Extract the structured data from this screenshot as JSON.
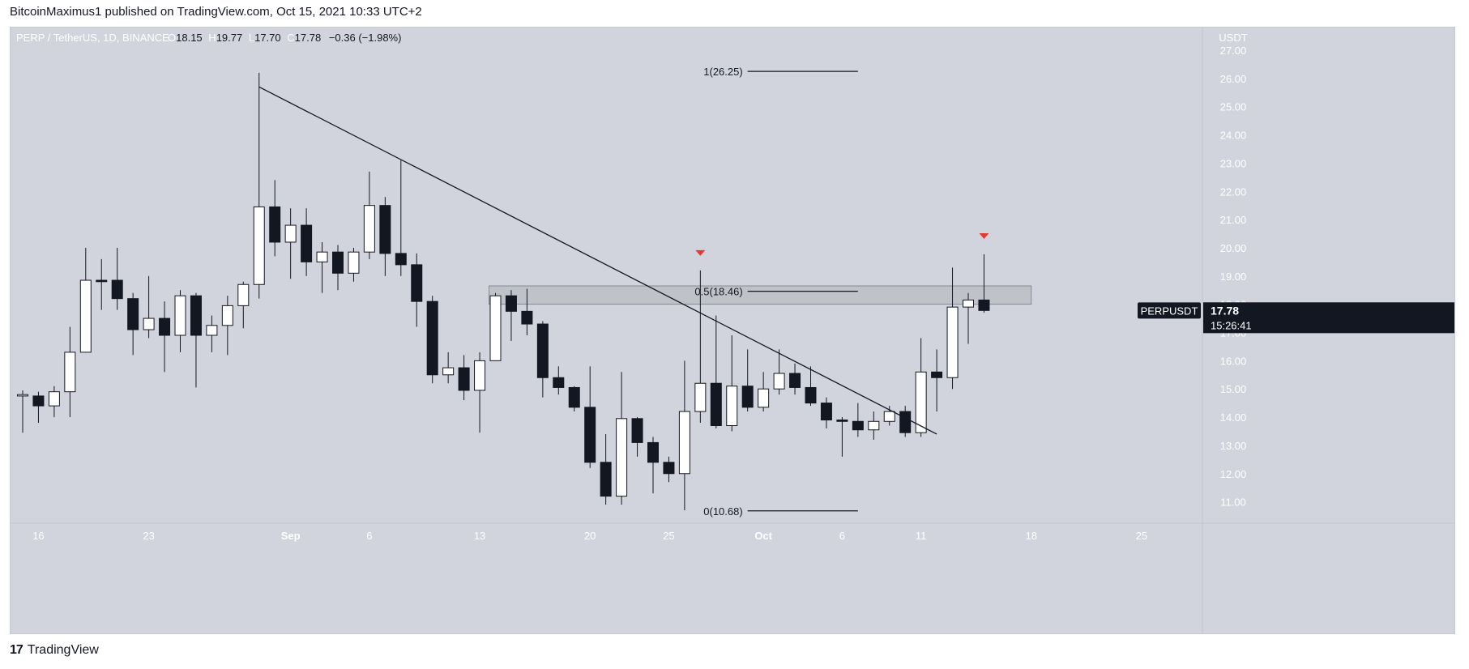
{
  "header": {
    "text": "BitcoinMaximus1 published on TradingView.com, Oct 15, 2021 10:33 UTC+2"
  },
  "footer": {
    "brand": "TradingView",
    "logo_icon": "tradingview-logo-icon"
  },
  "colors": {
    "background": "#d1d4dc",
    "up_candle": "#ffffff",
    "down_candle": "#131722",
    "zone_fill": "#b9bcc4",
    "marker": "#e53935",
    "price_label_bg": "#131722"
  },
  "chart_data": {
    "type": "candlestick",
    "title": "PERP / TetherUS, 1D, BINANCE",
    "ohlc_readout": {
      "o_label": "O",
      "o": "18.15",
      "h_label": "H",
      "h": "19.77",
      "l_label": "L",
      "l": "17.70",
      "c_label": "C",
      "c": "17.78",
      "change": "−0.36 (−1.98%)"
    },
    "currency": "USDT",
    "ylim": [
      10.3,
      27.7
    ],
    "y_ticks": [
      "27.00",
      "26.00",
      "25.00",
      "24.00",
      "23.00",
      "22.00",
      "21.00",
      "20.00",
      "19.00",
      "18.00",
      "17.00",
      "16.00",
      "15.00",
      "14.00",
      "13.00",
      "12.00",
      "11.00"
    ],
    "x_ticks": [
      {
        "label": "16",
        "date": "2021-08-16"
      },
      {
        "label": "23",
        "date": "2021-08-23"
      },
      {
        "label": "Sep",
        "date": "2021-09-01"
      },
      {
        "label": "6",
        "date": "2021-09-06"
      },
      {
        "label": "13",
        "date": "2021-09-13"
      },
      {
        "label": "20",
        "date": "2021-09-20"
      },
      {
        "label": "25",
        "date": "2021-09-25"
      },
      {
        "label": "Oct",
        "date": "2021-10-01"
      },
      {
        "label": "6",
        "date": "2021-10-06"
      },
      {
        "label": "11",
        "date": "2021-10-11"
      },
      {
        "label": "18",
        "date": "2021-10-18"
      },
      {
        "label": "25",
        "date": "2021-10-25"
      }
    ],
    "candles": [
      {
        "d": "2021-08-15",
        "o": 14.75,
        "h": 14.95,
        "l": 13.45,
        "c": 14.8
      },
      {
        "d": "2021-08-16",
        "o": 14.75,
        "h": 14.9,
        "l": 13.8,
        "c": 14.4
      },
      {
        "d": "2021-08-17",
        "o": 14.4,
        "h": 15.1,
        "l": 14.0,
        "c": 14.9
      },
      {
        "d": "2021-08-18",
        "o": 14.9,
        "h": 17.2,
        "l": 14.0,
        "c": 16.3
      },
      {
        "d": "2021-08-19",
        "o": 16.3,
        "h": 20.0,
        "l": 16.3,
        "c": 18.85
      },
      {
        "d": "2021-08-20",
        "o": 18.85,
        "h": 19.6,
        "l": 17.8,
        "c": 18.8
      },
      {
        "d": "2021-08-21",
        "o": 18.85,
        "h": 20.0,
        "l": 17.8,
        "c": 18.2
      },
      {
        "d": "2021-08-22",
        "o": 18.2,
        "h": 18.4,
        "l": 16.2,
        "c": 17.1
      },
      {
        "d": "2021-08-23",
        "o": 17.1,
        "h": 19.0,
        "l": 16.8,
        "c": 17.5
      },
      {
        "d": "2021-08-24",
        "o": 17.5,
        "h": 18.1,
        "l": 15.6,
        "c": 16.9
      },
      {
        "d": "2021-08-25",
        "o": 16.9,
        "h": 18.5,
        "l": 16.3,
        "c": 18.3
      },
      {
        "d": "2021-08-26",
        "o": 18.3,
        "h": 18.4,
        "l": 15.05,
        "c": 16.9
      },
      {
        "d": "2021-08-27",
        "o": 16.9,
        "h": 17.6,
        "l": 16.3,
        "c": 17.25
      },
      {
        "d": "2021-08-28",
        "o": 17.25,
        "h": 18.3,
        "l": 16.2,
        "c": 17.95
      },
      {
        "d": "2021-08-29",
        "o": 17.95,
        "h": 18.8,
        "l": 17.15,
        "c": 18.7
      },
      {
        "d": "2021-08-30",
        "o": 18.7,
        "h": 26.2,
        "l": 18.2,
        "c": 21.45
      },
      {
        "d": "2021-08-31",
        "o": 21.45,
        "h": 22.4,
        "l": 19.7,
        "c": 20.2
      },
      {
        "d": "2021-09-01",
        "o": 20.2,
        "h": 21.4,
        "l": 18.9,
        "c": 20.8
      },
      {
        "d": "2021-09-02",
        "o": 20.8,
        "h": 21.4,
        "l": 19.0,
        "c": 19.5
      },
      {
        "d": "2021-09-03",
        "o": 19.5,
        "h": 20.2,
        "l": 18.4,
        "c": 19.85
      },
      {
        "d": "2021-09-04",
        "o": 19.85,
        "h": 20.1,
        "l": 18.5,
        "c": 19.1
      },
      {
        "d": "2021-09-05",
        "o": 19.1,
        "h": 20.0,
        "l": 18.8,
        "c": 19.85
      },
      {
        "d": "2021-09-06",
        "o": 19.85,
        "h": 22.7,
        "l": 19.6,
        "c": 21.5
      },
      {
        "d": "2021-09-07",
        "o": 21.5,
        "h": 21.8,
        "l": 19.0,
        "c": 19.8
      },
      {
        "d": "2021-09-08",
        "o": 19.8,
        "h": 23.1,
        "l": 19.0,
        "c": 19.4
      },
      {
        "d": "2021-09-09",
        "o": 19.4,
        "h": 19.8,
        "l": 17.2,
        "c": 18.1
      },
      {
        "d": "2021-09-10",
        "o": 18.1,
        "h": 18.3,
        "l": 15.2,
        "c": 15.5
      },
      {
        "d": "2021-09-11",
        "o": 15.5,
        "h": 16.3,
        "l": 15.2,
        "c": 15.75
      },
      {
        "d": "2021-09-12",
        "o": 15.75,
        "h": 16.2,
        "l": 14.6,
        "c": 14.95
      },
      {
        "d": "2021-09-13",
        "o": 14.95,
        "h": 16.3,
        "l": 13.45,
        "c": 16.0
      },
      {
        "d": "2021-09-14",
        "o": 16.0,
        "h": 18.4,
        "l": 16.0,
        "c": 18.3
      },
      {
        "d": "2021-09-15",
        "o": 18.3,
        "h": 18.5,
        "l": 16.7,
        "c": 17.75
      },
      {
        "d": "2021-09-16",
        "o": 17.75,
        "h": 18.55,
        "l": 16.9,
        "c": 17.3
      },
      {
        "d": "2021-09-17",
        "o": 17.3,
        "h": 17.4,
        "l": 14.7,
        "c": 15.4
      },
      {
        "d": "2021-09-18",
        "o": 15.4,
        "h": 15.8,
        "l": 14.8,
        "c": 15.05
      },
      {
        "d": "2021-09-19",
        "o": 15.05,
        "h": 15.1,
        "l": 14.2,
        "c": 14.35
      },
      {
        "d": "2021-09-20",
        "o": 14.35,
        "h": 15.8,
        "l": 12.2,
        "c": 12.4
      },
      {
        "d": "2021-09-21",
        "o": 12.4,
        "h": 13.4,
        "l": 10.9,
        "c": 11.2
      },
      {
        "d": "2021-09-22",
        "o": 11.2,
        "h": 15.6,
        "l": 10.9,
        "c": 13.95
      },
      {
        "d": "2021-09-23",
        "o": 13.95,
        "h": 14.0,
        "l": 12.6,
        "c": 13.1
      },
      {
        "d": "2021-09-24",
        "o": 13.1,
        "h": 13.3,
        "l": 11.3,
        "c": 12.4
      },
      {
        "d": "2021-09-25",
        "o": 12.4,
        "h": 12.6,
        "l": 11.7,
        "c": 12.0
      },
      {
        "d": "2021-09-26",
        "o": 12.0,
        "h": 16.0,
        "l": 10.7,
        "c": 14.2
      },
      {
        "d": "2021-09-27",
        "o": 14.2,
        "h": 19.2,
        "l": 13.8,
        "c": 15.2
      },
      {
        "d": "2021-09-28",
        "o": 15.2,
        "h": 17.6,
        "l": 13.6,
        "c": 13.7
      },
      {
        "d": "2021-09-29",
        "o": 13.7,
        "h": 16.9,
        "l": 13.5,
        "c": 15.1
      },
      {
        "d": "2021-09-30",
        "o": 15.1,
        "h": 16.4,
        "l": 14.2,
        "c": 14.35
      },
      {
        "d": "2021-10-01",
        "o": 14.35,
        "h": 15.6,
        "l": 14.2,
        "c": 15.0
      },
      {
        "d": "2021-10-02",
        "o": 15.0,
        "h": 16.4,
        "l": 14.8,
        "c": 15.55
      },
      {
        "d": "2021-10-03",
        "o": 15.55,
        "h": 15.9,
        "l": 14.8,
        "c": 15.05
      },
      {
        "d": "2021-10-04",
        "o": 15.05,
        "h": 15.8,
        "l": 14.4,
        "c": 14.5
      },
      {
        "d": "2021-10-05",
        "o": 14.5,
        "h": 14.7,
        "l": 13.6,
        "c": 13.9
      },
      {
        "d": "2021-10-06",
        "o": 13.9,
        "h": 14.0,
        "l": 12.6,
        "c": 13.85
      },
      {
        "d": "2021-10-07",
        "o": 13.85,
        "h": 14.5,
        "l": 13.3,
        "c": 13.55
      },
      {
        "d": "2021-10-08",
        "o": 13.55,
        "h": 14.2,
        "l": 13.2,
        "c": 13.85
      },
      {
        "d": "2021-10-09",
        "o": 13.85,
        "h": 14.4,
        "l": 13.7,
        "c": 14.2
      },
      {
        "d": "2021-10-10",
        "o": 14.2,
        "h": 14.4,
        "l": 13.3,
        "c": 13.45
      },
      {
        "d": "2021-10-11",
        "o": 13.45,
        "h": 16.8,
        "l": 13.3,
        "c": 15.6
      },
      {
        "d": "2021-10-12",
        "o": 15.6,
        "h": 16.4,
        "l": 14.2,
        "c": 15.4
      },
      {
        "d": "2021-10-13",
        "o": 15.4,
        "h": 19.3,
        "l": 15.0,
        "c": 17.9
      },
      {
        "d": "2021-10-14",
        "o": 17.9,
        "h": 18.4,
        "l": 16.6,
        "c": 18.15
      },
      {
        "d": "2021-10-15",
        "o": 18.15,
        "h": 19.77,
        "l": 17.7,
        "c": 17.78
      }
    ],
    "trendline": [
      {
        "d": "2021-08-30",
        "y": 25.7
      },
      {
        "d": "2021-10-12",
        "y": 13.4
      }
    ],
    "resistance_zone": {
      "from": "2021-09-14",
      "to": "2021-10-18",
      "low": 18.0,
      "high": 18.65
    },
    "fib_levels": [
      {
        "label": "1(26.25)",
        "value": 26.25
      },
      {
        "label": "0.5(18.46)",
        "value": 18.46
      },
      {
        "label": "0(10.68)",
        "value": 10.68
      }
    ],
    "fib_dates": {
      "from": "2021-09-30",
      "to": "2021-10-07"
    },
    "markers": [
      {
        "d": "2021-09-27",
        "y": 19.8
      },
      {
        "d": "2021-10-15",
        "y": 20.4
      }
    ],
    "price_label": {
      "symbol": "PERPUSDT",
      "price": "17.78",
      "countdown": "15:26:41",
      "value": 17.78
    }
  }
}
